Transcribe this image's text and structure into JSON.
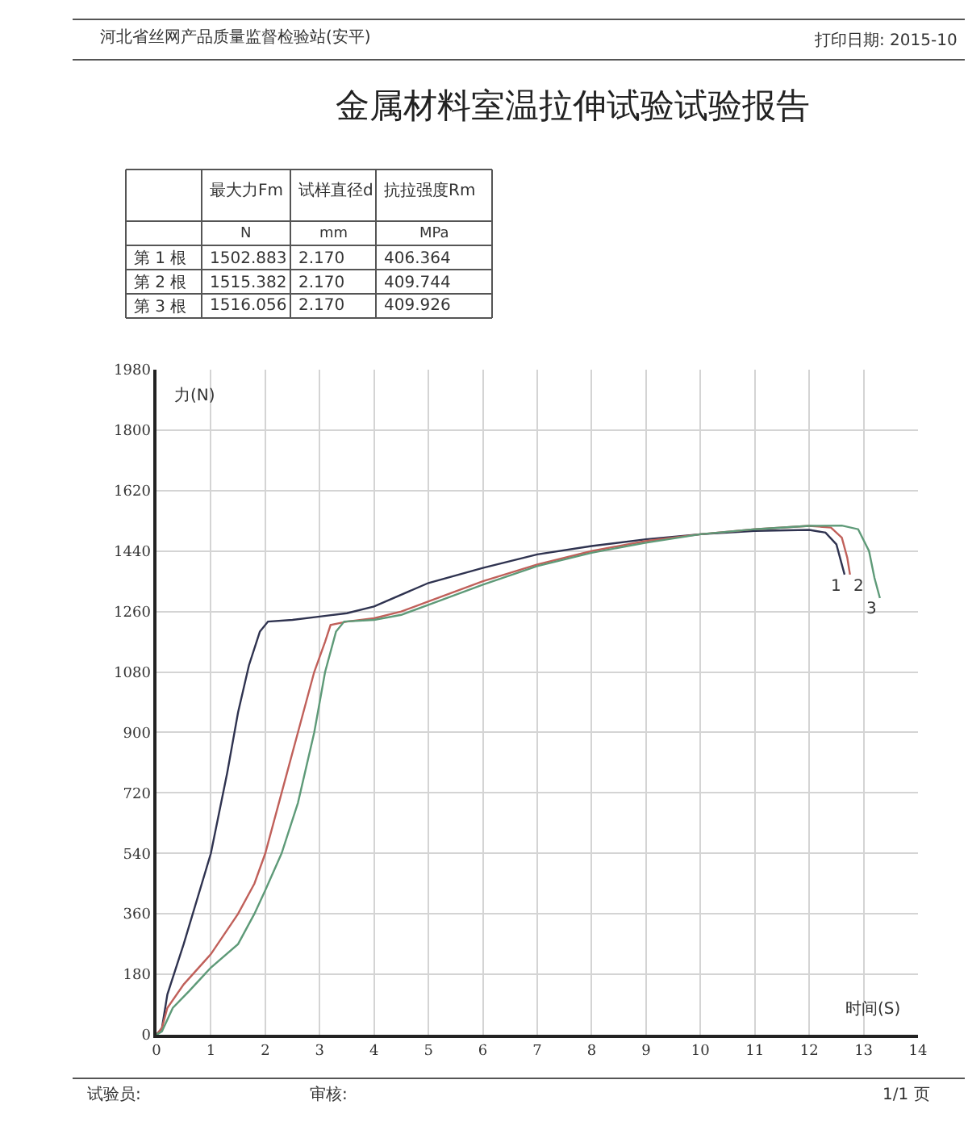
{
  "chart_data": {
    "type": "line",
    "title": "金属材料室温拉伸试验试验报告",
    "xlabel": "时间(S)",
    "ylabel": "力(N)",
    "xlim": [
      0,
      14
    ],
    "xticks": [
      0,
      1,
      2,
      3,
      4,
      5,
      6,
      7,
      8,
      9,
      10,
      11,
      12,
      13,
      14
    ],
    "ylim": [
      0,
      1980
    ],
    "yticks": [
      0,
      180,
      360,
      540,
      720,
      900,
      1080,
      1260,
      1440,
      1620,
      1800,
      1980
    ],
    "grid": true,
    "legend": false,
    "marker": "none",
    "line_style": "solid",
    "series": [
      {
        "name": "1",
        "color": "#2f3350",
        "x": [
          0,
          0.1,
          0.2,
          0.5,
          1,
          1.3,
          1.5,
          1.7,
          1.9,
          2.05,
          2.5,
          3,
          3.5,
          4,
          5,
          6,
          7,
          8,
          9,
          10,
          11,
          12,
          12.3,
          12.5,
          12.6,
          12.65
        ],
        "values": [
          0,
          20,
          120,
          270,
          540,
          780,
          960,
          1100,
          1200,
          1230,
          1235,
          1245,
          1255,
          1275,
          1345,
          1390,
          1430,
          1455,
          1475,
          1490,
          1500,
          1503,
          1495,
          1460,
          1400,
          1370
        ]
      },
      {
        "name": "2",
        "color": "#c0605a",
        "x": [
          0,
          0.1,
          0.2,
          0.5,
          1,
          1.5,
          1.8,
          2,
          2.3,
          2.6,
          2.9,
          3.1,
          3.2,
          3.5,
          4,
          4.5,
          5,
          6,
          7,
          8,
          9,
          10,
          11,
          12,
          12.4,
          12.6,
          12.7,
          12.75
        ],
        "values": [
          0,
          20,
          80,
          150,
          240,
          360,
          450,
          540,
          720,
          900,
          1080,
          1170,
          1220,
          1230,
          1240,
          1260,
          1290,
          1350,
          1400,
          1440,
          1470,
          1490,
          1505,
          1515,
          1510,
          1480,
          1420,
          1370
        ]
      },
      {
        "name": "3",
        "color": "#5e9a78",
        "x": [
          0,
          0.1,
          0.3,
          0.6,
          1,
          1.5,
          1.8,
          2,
          2.3,
          2.6,
          2.9,
          3.1,
          3.3,
          3.45,
          4,
          4.5,
          5,
          6,
          7,
          8,
          9,
          10,
          11,
          12,
          12.6,
          12.9,
          13.1,
          13.2,
          13.3
        ],
        "values": [
          0,
          10,
          80,
          130,
          200,
          270,
          360,
          430,
          540,
          690,
          900,
          1080,
          1200,
          1230,
          1235,
          1250,
          1280,
          1340,
          1395,
          1435,
          1465,
          1490,
          1505,
          1515,
          1516,
          1505,
          1440,
          1360,
          1300
        ]
      }
    ],
    "annotations": [
      "河北省丝网产品质量监督检验站(安平)",
      "打印日期: 2015-10",
      "最大力Fm",
      "试样直径d",
      "抗拉强度Rm",
      "N",
      "mm",
      "MPa",
      "第 1 根",
      "1502.883",
      "2.170",
      "406.364",
      "第 2 根",
      "1515.382",
      "2.170",
      "409.744",
      "第 3 根",
      "1516.056",
      "2.170",
      "409.926",
      "试验员:",
      "审核:",
      "1/1 页"
    ]
  }
}
